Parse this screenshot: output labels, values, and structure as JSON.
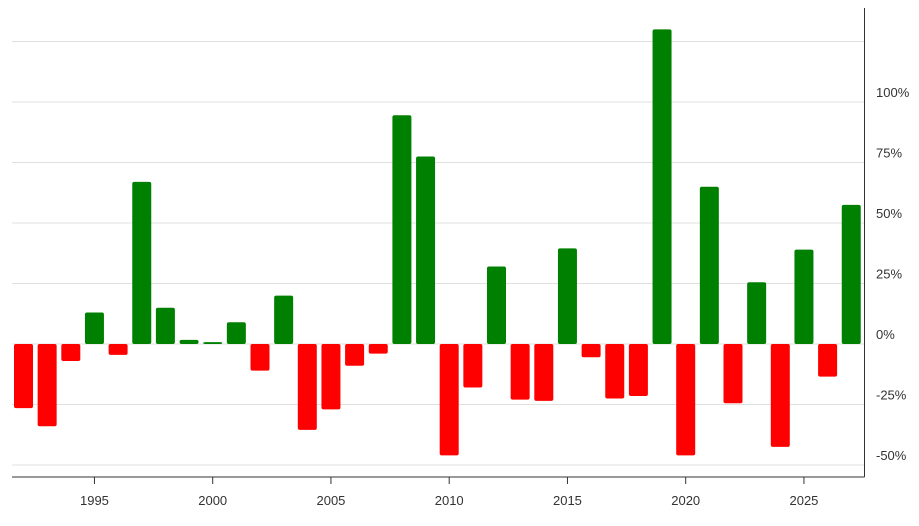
{
  "chart_data": {
    "type": "bar",
    "title": "",
    "xlabel": "",
    "ylabel": "",
    "categories": [
      1992,
      1993,
      1994,
      1995,
      1996,
      1997,
      1998,
      1999,
      2000,
      2001,
      2002,
      2003,
      2004,
      2005,
      2006,
      2007,
      2008,
      2009,
      2010,
      2011,
      2012,
      2013,
      2014,
      2015,
      2016,
      2017,
      2018,
      2019,
      2020,
      2021,
      2022,
      2023,
      2024,
      2025,
      2026,
      2027
    ],
    "values": [
      -26.5,
      -34,
      -7,
      13,
      -4.5,
      67,
      15,
      1.7,
      0.8,
      9,
      -11,
      20,
      -35.5,
      -27,
      -9,
      -4,
      94.5,
      77.5,
      -46,
      -18,
      32,
      -23,
      -23.5,
      39.5,
      -5.5,
      -22.5,
      -21.5,
      130,
      -46,
      65,
      -24.5,
      25.5,
      -42.5,
      39,
      -13.5,
      57.5
    ],
    "ylim": [
      -55,
      140
    ],
    "y_ticks": [
      -50,
      -25,
      0,
      25,
      50,
      75,
      100
    ],
    "y_tick_labels": [
      "-50%",
      "-25%",
      "0%",
      "25%",
      "50%",
      "75%",
      "100%"
    ],
    "x_ticks": [
      1995,
      2000,
      2005,
      2010,
      2015,
      2020,
      2025
    ],
    "x_tick_labels": [
      "1995",
      "2000",
      "2005",
      "2010",
      "2015",
      "2020",
      "2025"
    ],
    "grid": true,
    "gridlines_at": [
      -50,
      -25,
      0,
      25,
      50,
      75,
      100,
      125
    ],
    "y_axis_position": "right",
    "legend": null,
    "colors": {
      "positive": "#008000",
      "negative": "#ff0000",
      "grid": "#e0e0e0",
      "axis": "#333333"
    }
  }
}
